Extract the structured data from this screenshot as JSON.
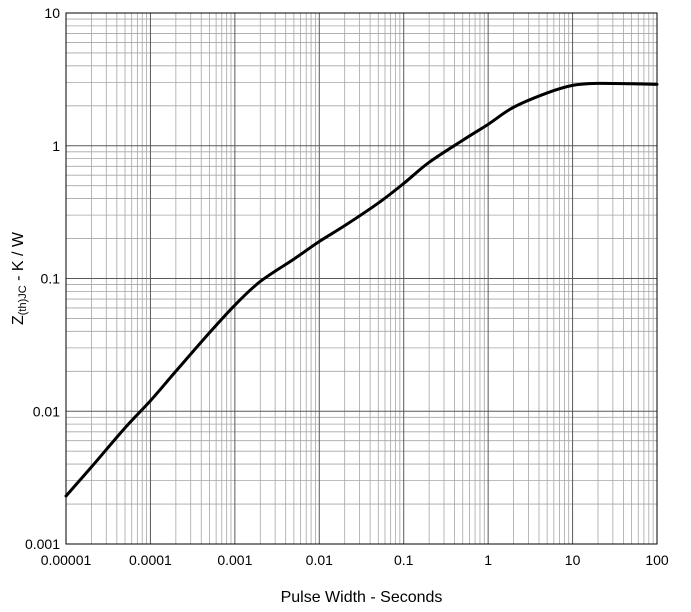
{
  "chart_data": {
    "type": "line",
    "x_scale": "log",
    "y_scale": "log",
    "xlabel": "Pulse Width - Seconds",
    "ylabel": {
      "main": "Z",
      "subscript": "(th)JC",
      "rest": " - K / W"
    },
    "xlim": [
      1e-05,
      100
    ],
    "ylim": [
      0.001,
      10
    ],
    "x_ticks": [
      "0.00001",
      "0.0001",
      "0.001",
      "0.01",
      "0.1",
      "1",
      "10",
      "100"
    ],
    "y_ticks": [
      "0.001",
      "0.01",
      "0.1",
      "1",
      "10"
    ],
    "grid": true,
    "line_color": "#000000",
    "series": [
      {
        "x": [
          1e-05,
          2e-05,
          5e-05,
          0.0001,
          0.0002,
          0.0005,
          0.001,
          0.002,
          0.005,
          0.01,
          0.02,
          0.05,
          0.1,
          0.2,
          0.5,
          1,
          2,
          5,
          10,
          20,
          50,
          100
        ],
        "y": [
          0.0023,
          0.0038,
          0.0075,
          0.012,
          0.02,
          0.039,
          0.063,
          0.095,
          0.14,
          0.19,
          0.25,
          0.37,
          0.52,
          0.75,
          1.1,
          1.45,
          1.95,
          2.5,
          2.85,
          2.95,
          2.93,
          2.9
        ]
      }
    ]
  }
}
